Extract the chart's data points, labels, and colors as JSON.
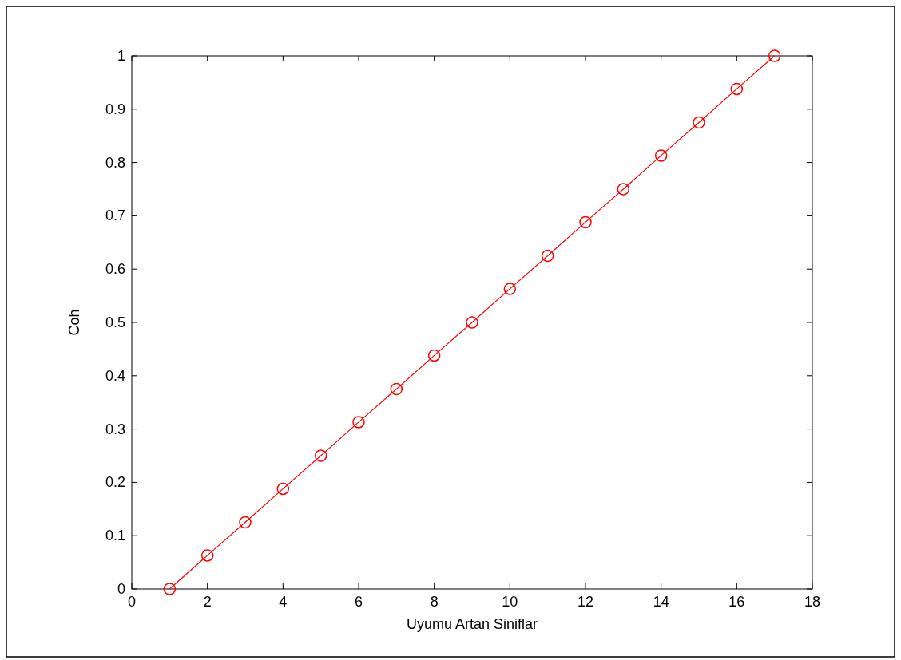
{
  "chart_data": {
    "type": "line",
    "xlabel": "Uyumu Artan Siniflar",
    "ylabel": "Coh",
    "x": [
      1,
      2,
      3,
      4,
      5,
      6,
      7,
      8,
      9,
      10,
      11,
      12,
      13,
      14,
      15,
      16,
      17
    ],
    "series": [
      {
        "color": "#ff0000",
        "values": [
          0,
          0.063,
          0.125,
          0.188,
          0.25,
          0.313,
          0.375,
          0.438,
          0.5,
          0.563,
          0.625,
          0.688,
          0.75,
          0.813,
          0.875,
          0.938,
          1
        ]
      }
    ],
    "xlim": [
      0,
      18
    ],
    "xticks": [
      0,
      2,
      4,
      6,
      8,
      10,
      12,
      14,
      16,
      18
    ],
    "ylim": [
      0,
      1
    ],
    "yticks": [
      0,
      0.1,
      0.2,
      0.3,
      0.4,
      0.5,
      0.6,
      0.7,
      0.8,
      0.9,
      1
    ],
    "grid": false,
    "marker": "circle",
    "line_style": "solid"
  }
}
